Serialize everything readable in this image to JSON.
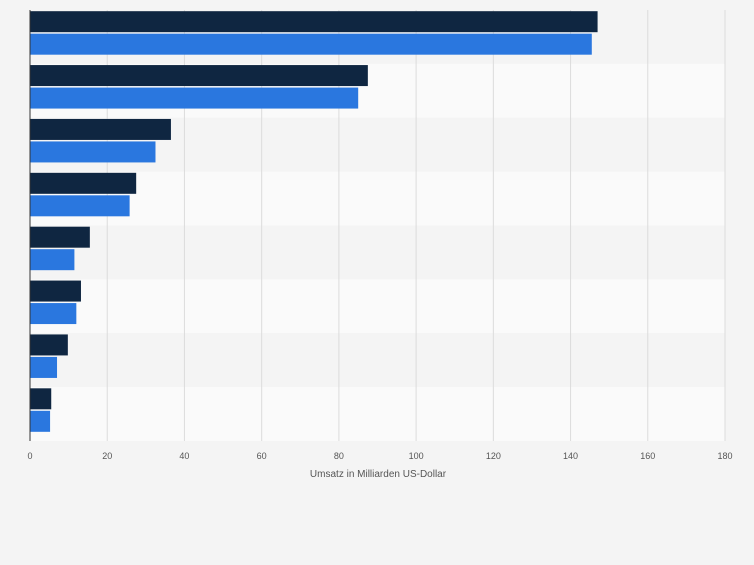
{
  "chart_data": {
    "type": "bar",
    "orientation": "horizontal",
    "categories": [
      "",
      "",
      "",
      "",
      "",
      "",
      "",
      ""
    ],
    "series": [
      {
        "values": [
          147,
          87.5,
          36.5,
          27.5,
          15.5,
          13.2,
          9.8,
          5.5
        ],
        "color": "#0f2641"
      },
      {
        "values": [
          145.5,
          85,
          32.5,
          25.8,
          11.5,
          12,
          7,
          5.2
        ],
        "color": "#2a77df"
      }
    ],
    "title": "",
    "xlabel": "Umsatz in Milliarden US-Dollar",
    "ylabel": "",
    "xlim": [
      0,
      180
    ],
    "xticks": [
      0,
      20,
      40,
      60,
      80,
      100,
      120,
      140,
      160,
      180
    ],
    "grid": true,
    "legend": "none"
  },
  "colors": {
    "page_background": "#f4f4f4",
    "plot_band_a": "#f4f4f4",
    "plot_band_b": "#fafafa",
    "grid": "#dcdcdc",
    "axis": "#333333",
    "tick_text": "#555555"
  }
}
